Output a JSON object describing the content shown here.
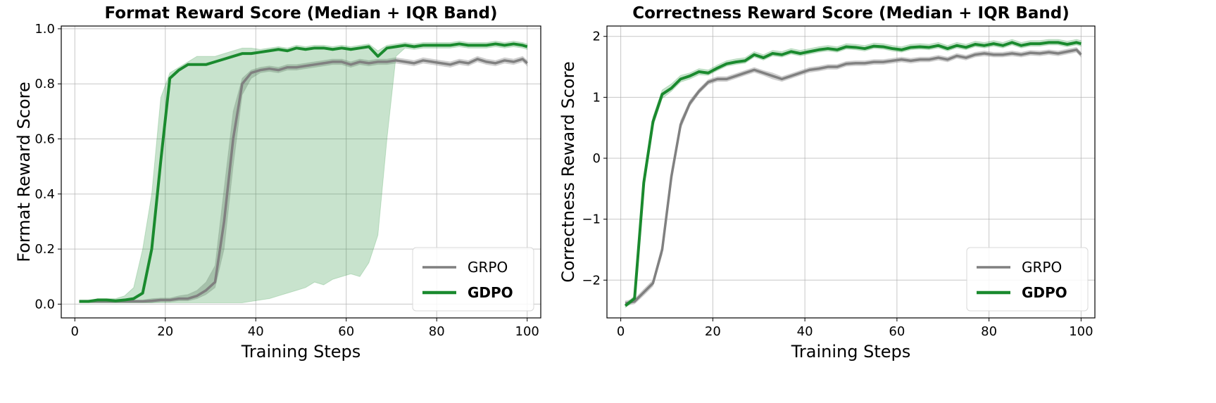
{
  "colors": {
    "GRPO": "#808080",
    "GDPO": "#1a8a2e",
    "GDPO_band": "#c8e2c9",
    "GRPO_band": "#c0c0c0",
    "grid": "#b0b0b0"
  },
  "chart_data": [
    {
      "type": "line",
      "title": "Format Reward Score (Median + IQR Band)",
      "xlabel": "Training Steps",
      "ylabel": "Format Reward Score",
      "xlim": [
        -3,
        103
      ],
      "ylim": [
        -0.05,
        1.01
      ],
      "xticks": [
        0,
        20,
        40,
        60,
        80,
        100
      ],
      "yticks": [
        0.0,
        0.2,
        0.4,
        0.6,
        0.8,
        1.0
      ],
      "ytick_labels": [
        "0.0",
        "0.2",
        "0.4",
        "0.6",
        "0.8",
        "1.0"
      ],
      "grid": true,
      "legend": "lower-right",
      "x": [
        1,
        3,
        5,
        7,
        9,
        11,
        13,
        15,
        17,
        19,
        21,
        23,
        25,
        27,
        29,
        31,
        33,
        35,
        37,
        39,
        41,
        43,
        45,
        47,
        49,
        51,
        53,
        55,
        57,
        59,
        61,
        63,
        65,
        67,
        69,
        71,
        73,
        75,
        77,
        79,
        81,
        83,
        85,
        87,
        89,
        91,
        93,
        95,
        97,
        99,
        100
      ],
      "series": [
        {
          "name": "GRPO",
          "median": [
            0.01,
            0.01,
            0.01,
            0.01,
            0.01,
            0.01,
            0.01,
            0.01,
            0.012,
            0.015,
            0.015,
            0.02,
            0.02,
            0.03,
            0.05,
            0.08,
            0.3,
            0.6,
            0.8,
            0.84,
            0.85,
            0.855,
            0.85,
            0.86,
            0.86,
            0.865,
            0.87,
            0.875,
            0.88,
            0.88,
            0.87,
            0.88,
            0.875,
            0.88,
            0.88,
            0.885,
            0.88,
            0.875,
            0.885,
            0.88,
            0.875,
            0.87,
            0.88,
            0.875,
            0.89,
            0.88,
            0.875,
            0.885,
            0.88,
            0.89,
            0.875
          ],
          "q1": [
            0.005,
            0.005,
            0.005,
            0.005,
            0.005,
            0.005,
            0.005,
            0.005,
            0.005,
            0.008,
            0.008,
            0.012,
            0.012,
            0.02,
            0.035,
            0.06,
            0.2,
            0.5,
            0.76,
            0.82,
            0.84,
            0.845,
            0.84,
            0.85,
            0.85,
            0.855,
            0.86,
            0.865,
            0.87,
            0.87,
            0.86,
            0.87,
            0.865,
            0.87,
            0.87,
            0.875,
            0.87,
            0.865,
            0.875,
            0.87,
            0.865,
            0.86,
            0.87,
            0.865,
            0.88,
            0.87,
            0.865,
            0.875,
            0.87,
            0.88,
            0.865
          ],
          "q3": [
            0.015,
            0.015,
            0.015,
            0.015,
            0.015,
            0.015,
            0.015,
            0.015,
            0.02,
            0.022,
            0.022,
            0.03,
            0.035,
            0.05,
            0.08,
            0.14,
            0.42,
            0.7,
            0.82,
            0.85,
            0.86,
            0.865,
            0.86,
            0.87,
            0.87,
            0.875,
            0.88,
            0.885,
            0.89,
            0.89,
            0.88,
            0.89,
            0.885,
            0.89,
            0.89,
            0.895,
            0.89,
            0.885,
            0.895,
            0.89,
            0.885,
            0.88,
            0.89,
            0.885,
            0.9,
            0.89,
            0.885,
            0.895,
            0.89,
            0.9,
            0.885
          ]
        },
        {
          "name": "GDPO",
          "median": [
            0.01,
            0.01,
            0.015,
            0.015,
            0.012,
            0.015,
            0.02,
            0.04,
            0.2,
            0.52,
            0.82,
            0.85,
            0.87,
            0.87,
            0.87,
            0.88,
            0.89,
            0.9,
            0.91,
            0.91,
            0.915,
            0.92,
            0.925,
            0.92,
            0.93,
            0.925,
            0.93,
            0.93,
            0.925,
            0.93,
            0.925,
            0.93,
            0.935,
            0.9,
            0.93,
            0.935,
            0.94,
            0.935,
            0.94,
            0.94,
            0.94,
            0.94,
            0.945,
            0.94,
            0.94,
            0.94,
            0.945,
            0.94,
            0.945,
            0.94,
            0.935
          ],
          "q1": [
            0.005,
            0.005,
            0.005,
            0.005,
            0.005,
            0.005,
            0.005,
            0.005,
            0.005,
            0.005,
            0.005,
            0.005,
            0.005,
            0.005,
            0.005,
            0.005,
            0.005,
            0.005,
            0.005,
            0.01,
            0.015,
            0.02,
            0.03,
            0.04,
            0.05,
            0.06,
            0.08,
            0.07,
            0.09,
            0.1,
            0.11,
            0.1,
            0.15,
            0.25,
            0.6,
            0.9,
            0.93,
            0.925,
            0.93,
            0.93,
            0.93,
            0.93,
            0.935,
            0.93,
            0.93,
            0.93,
            0.935,
            0.93,
            0.935,
            0.93,
            0.925
          ],
          "q3": [
            0.012,
            0.012,
            0.02,
            0.02,
            0.02,
            0.03,
            0.06,
            0.2,
            0.4,
            0.75,
            0.84,
            0.86,
            0.88,
            0.9,
            0.9,
            0.9,
            0.91,
            0.92,
            0.93,
            0.93,
            0.925,
            0.93,
            0.935,
            0.93,
            0.94,
            0.935,
            0.94,
            0.94,
            0.935,
            0.94,
            0.935,
            0.94,
            0.945,
            0.92,
            0.94,
            0.945,
            0.95,
            0.945,
            0.95,
            0.95,
            0.95,
            0.95,
            0.955,
            0.95,
            0.95,
            0.95,
            0.955,
            0.95,
            0.955,
            0.95,
            0.945
          ]
        }
      ]
    },
    {
      "type": "line",
      "title": "Correctness Reward Score (Median + IQR Band)",
      "xlabel": "Training Steps",
      "ylabel": "Correctness Reward Score",
      "xlim": [
        -3,
        103
      ],
      "ylim": [
        -2.62,
        2.17
      ],
      "xticks": [
        0,
        20,
        40,
        60,
        80,
        100
      ],
      "yticks": [
        -2,
        -1,
        0,
        1,
        2
      ],
      "ytick_labels": [
        "−2",
        "−1",
        "0",
        "1",
        "2"
      ],
      "grid": true,
      "legend": "lower-right",
      "x": [
        1,
        3,
        5,
        7,
        9,
        11,
        13,
        15,
        17,
        19,
        21,
        23,
        25,
        27,
        29,
        31,
        33,
        35,
        37,
        39,
        41,
        43,
        45,
        47,
        49,
        51,
        53,
        55,
        57,
        59,
        61,
        63,
        65,
        67,
        69,
        71,
        73,
        75,
        77,
        79,
        81,
        83,
        85,
        87,
        89,
        91,
        93,
        95,
        97,
        99,
        100
      ],
      "series": [
        {
          "name": "GRPO",
          "median": [
            -2.38,
            -2.35,
            -2.2,
            -2.05,
            -1.5,
            -0.3,
            0.55,
            0.9,
            1.1,
            1.25,
            1.3,
            1.3,
            1.35,
            1.4,
            1.45,
            1.4,
            1.35,
            1.3,
            1.35,
            1.4,
            1.45,
            1.47,
            1.5,
            1.5,
            1.55,
            1.56,
            1.56,
            1.58,
            1.58,
            1.6,
            1.62,
            1.6,
            1.62,
            1.62,
            1.65,
            1.62,
            1.68,
            1.65,
            1.7,
            1.72,
            1.7,
            1.7,
            1.72,
            1.7,
            1.73,
            1.72,
            1.74,
            1.72,
            1.75,
            1.78,
            1.7
          ],
          "q1": [
            -2.42,
            -2.39,
            -2.25,
            -2.1,
            -1.58,
            -0.4,
            0.48,
            0.85,
            1.06,
            1.21,
            1.26,
            1.26,
            1.31,
            1.36,
            1.41,
            1.36,
            1.3,
            1.26,
            1.31,
            1.36,
            1.41,
            1.43,
            1.46,
            1.46,
            1.51,
            1.52,
            1.52,
            1.54,
            1.54,
            1.56,
            1.58,
            1.56,
            1.58,
            1.58,
            1.61,
            1.58,
            1.64,
            1.61,
            1.66,
            1.68,
            1.66,
            1.66,
            1.68,
            1.66,
            1.69,
            1.68,
            1.7,
            1.68,
            1.71,
            1.74,
            1.66
          ],
          "q3": [
            -2.34,
            -2.31,
            -2.15,
            -2.0,
            -1.42,
            -0.2,
            0.62,
            0.95,
            1.14,
            1.29,
            1.34,
            1.34,
            1.39,
            1.44,
            1.49,
            1.44,
            1.4,
            1.34,
            1.39,
            1.44,
            1.49,
            1.51,
            1.54,
            1.54,
            1.59,
            1.6,
            1.6,
            1.62,
            1.62,
            1.64,
            1.66,
            1.64,
            1.66,
            1.66,
            1.69,
            1.66,
            1.72,
            1.69,
            1.74,
            1.76,
            1.74,
            1.74,
            1.76,
            1.74,
            1.77,
            1.76,
            1.78,
            1.76,
            1.79,
            1.82,
            1.74
          ]
        },
        {
          "name": "GDPO",
          "median": [
            -2.42,
            -2.3,
            -0.4,
            0.6,
            1.05,
            1.15,
            1.3,
            1.35,
            1.42,
            1.4,
            1.48,
            1.55,
            1.58,
            1.6,
            1.7,
            1.65,
            1.72,
            1.7,
            1.75,
            1.72,
            1.75,
            1.78,
            1.8,
            1.78,
            1.83,
            1.82,
            1.8,
            1.84,
            1.83,
            1.8,
            1.78,
            1.82,
            1.83,
            1.82,
            1.85,
            1.8,
            1.85,
            1.82,
            1.87,
            1.85,
            1.88,
            1.85,
            1.9,
            1.85,
            1.88,
            1.88,
            1.9,
            1.9,
            1.87,
            1.9,
            1.88
          ],
          "q1": [
            -2.45,
            -2.34,
            -0.5,
            0.52,
            0.98,
            1.1,
            1.25,
            1.3,
            1.37,
            1.36,
            1.44,
            1.51,
            1.54,
            1.56,
            1.66,
            1.61,
            1.68,
            1.66,
            1.71,
            1.68,
            1.71,
            1.74,
            1.76,
            1.74,
            1.79,
            1.78,
            1.76,
            1.8,
            1.79,
            1.76,
            1.74,
            1.78,
            1.79,
            1.78,
            1.81,
            1.76,
            1.81,
            1.78,
            1.83,
            1.81,
            1.84,
            1.81,
            1.86,
            1.81,
            1.84,
            1.84,
            1.86,
            1.86,
            1.83,
            1.86,
            1.84
          ],
          "q3": [
            -2.39,
            -2.26,
            -0.3,
            0.68,
            1.12,
            1.22,
            1.36,
            1.4,
            1.47,
            1.45,
            1.53,
            1.6,
            1.63,
            1.65,
            1.75,
            1.7,
            1.77,
            1.75,
            1.8,
            1.77,
            1.8,
            1.83,
            1.85,
            1.83,
            1.88,
            1.87,
            1.85,
            1.89,
            1.88,
            1.85,
            1.83,
            1.87,
            1.88,
            1.87,
            1.9,
            1.85,
            1.9,
            1.87,
            1.92,
            1.9,
            1.93,
            1.9,
            1.95,
            1.9,
            1.93,
            1.93,
            1.95,
            1.95,
            1.92,
            1.95,
            1.93
          ]
        }
      ]
    }
  ]
}
